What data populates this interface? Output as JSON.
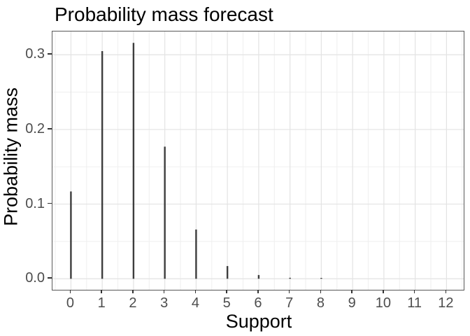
{
  "chart_data": {
    "type": "bar",
    "style": "vertical-spike-pmf",
    "title": "Probability mass forecast",
    "xlabel": "Support",
    "ylabel": "Probability mass",
    "categories": [
      0,
      1,
      2,
      3,
      4,
      5,
      6,
      7,
      8,
      9,
      10,
      11,
      12
    ],
    "values": [
      0.117,
      0.305,
      0.316,
      0.177,
      0.066,
      0.017,
      0.005,
      0.0013,
      0.0008,
      0,
      0,
      0,
      0
    ],
    "x_tick_labels": [
      "0",
      "1",
      "2",
      "3",
      "4",
      "5",
      "6",
      "7",
      "8",
      "9",
      "10",
      "11",
      "12"
    ],
    "y_ticks": [
      0.0,
      0.1,
      0.2,
      0.3
    ],
    "y_tick_labels": [
      "0.0",
      "0.1",
      "0.2",
      "0.3"
    ],
    "xlim": [
      -0.59,
      12.55
    ],
    "ylim": [
      -0.0148,
      0.3312
    ],
    "grid": {
      "major": true,
      "minor": true
    },
    "legend": "none",
    "colors": {
      "spike": "#3d3d3d",
      "panel_border": "#585858",
      "grid_major": "#e3e3e3",
      "grid_minor": "#f0f0f0",
      "tick_mark": "#333333",
      "tick_label": "#4d4d4d",
      "title": "#000000",
      "axis_title": "#000000",
      "background": "#ffffff"
    }
  }
}
